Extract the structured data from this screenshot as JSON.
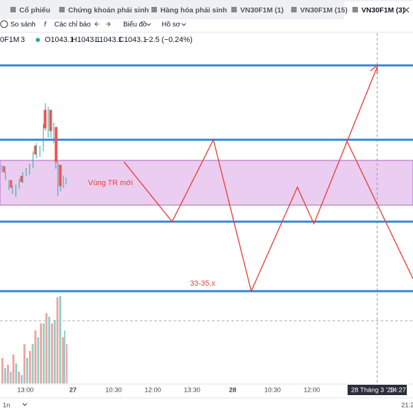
{
  "tabs": [
    "Cổ phiếu",
    "Chứng khoán phái sinh",
    "Hàng hóa phái sinh",
    "VN30F1M (1)",
    "VN30F1M (15)",
    "VN30F1M (3)"
  ],
  "toolbar": [
    "So sánh",
    "Các chỉ báo",
    "Biểu đồ",
    "Hồ sơ"
  ],
  "legend": {
    "symbol": "0F1M",
    "interval": "3",
    "open": "O1043.1",
    "high": "H1043.1",
    "low": "L1043.1",
    "close": "C1043.1",
    "change": "−2.5 (−0.24%)"
  },
  "annotations": [
    "Vùng TR mới",
    "33-35.x"
  ],
  "x_axis": [
    "13:00",
    "27",
    "10:30",
    "12:00",
    "13:30",
    "28",
    "10:30",
    "12:00"
  ],
  "crosshair": {
    "date": "28 Tháng 3 '23",
    "time": "14:27"
  },
  "footer": {
    "range": "1n",
    "clock": "21:2"
  }
}
